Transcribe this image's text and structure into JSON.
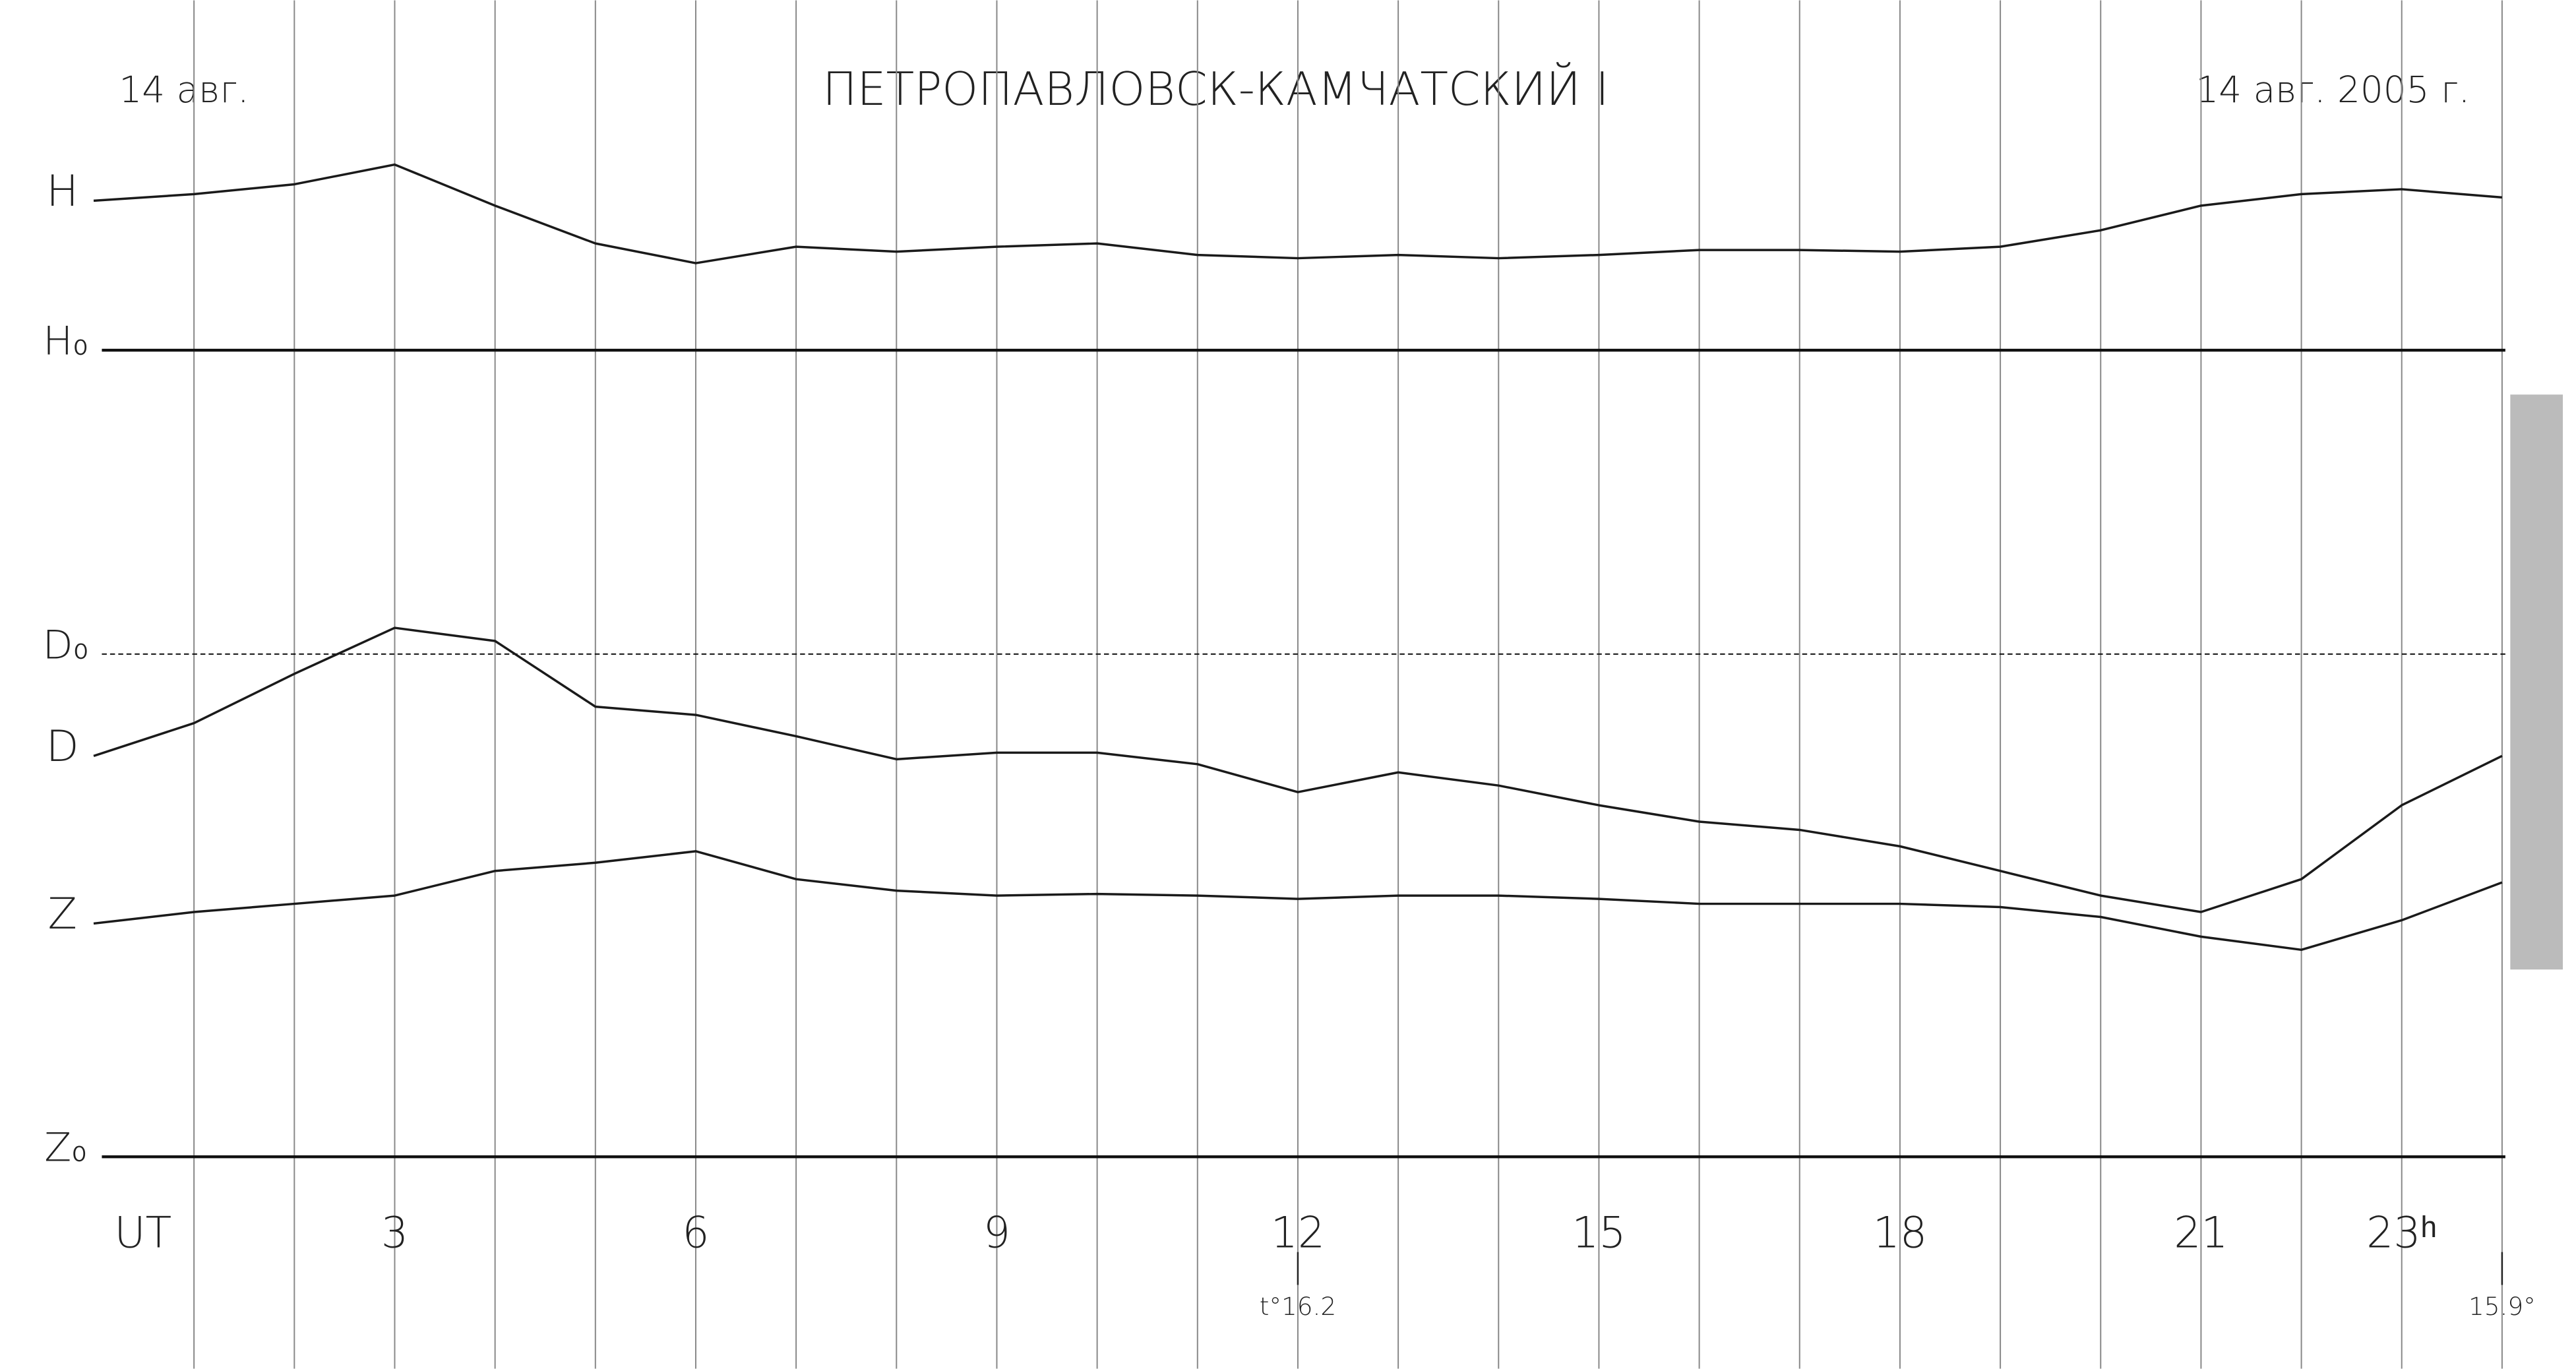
{
  "chart_data": {
    "type": "line",
    "title": "ПЕТРОПАВЛОВСК-КАМЧАТСКИЙ I",
    "date_left": "14 авг.",
    "date_right": "14 авг. 2005 г.",
    "x": [
      0,
      1,
      2,
      3,
      4,
      5,
      6,
      7,
      8,
      9,
      10,
      11,
      12,
      13,
      14,
      15,
      16,
      17,
      18,
      19,
      20,
      21,
      22,
      23,
      24
    ],
    "xlim": [
      0,
      24
    ],
    "xticks": [
      {
        "value": 0,
        "label": "UT"
      },
      3,
      6,
      9,
      12,
      15,
      18,
      21,
      {
        "value": 23,
        "label": "23ʰ"
      }
    ],
    "hour_lines": [
      1,
      2,
      3,
      4,
      5,
      6,
      7,
      8,
      9,
      10,
      11,
      12,
      13,
      14,
      15,
      16,
      17,
      18,
      19,
      20,
      21,
      22,
      23,
      24
    ],
    "ylim": [
      0,
      704
    ],
    "color": "#1a1a1a",
    "series": [
      {
        "name": "H",
        "values": [
          582,
          586,
          592,
          604,
          579,
          556,
          544,
          554,
          551,
          554,
          556,
          549,
          547,
          549,
          547,
          549,
          552,
          552,
          551,
          554,
          564,
          579,
          586,
          589,
          584
        ]
      },
      {
        "name": "D",
        "values": [
          244,
          264,
          294,
          322,
          314,
          274,
          269,
          256,
          242,
          246,
          246,
          239,
          222,
          234,
          226,
          214,
          204,
          199,
          189,
          174,
          159,
          149,
          169,
          214,
          244
        ]
      },
      {
        "name": "Z",
        "values": [
          142,
          149,
          154,
          159,
          174,
          179,
          186,
          169,
          162,
          159,
          160,
          159,
          157,
          159,
          159,
          157,
          154,
          154,
          154,
          152,
          146,
          134,
          126,
          144,
          167
        ]
      }
    ],
    "baselines": [
      {
        "name": "H₀",
        "value": 491
      },
      {
        "name": "D₀",
        "value": 306,
        "dashed": true
      },
      {
        "name": "Z₀",
        "value": 0
      }
    ],
    "annotations": [
      {
        "text": "t°16.2",
        "x": 12
      },
      {
        "text": "15.9°",
        "x": 24
      }
    ]
  }
}
